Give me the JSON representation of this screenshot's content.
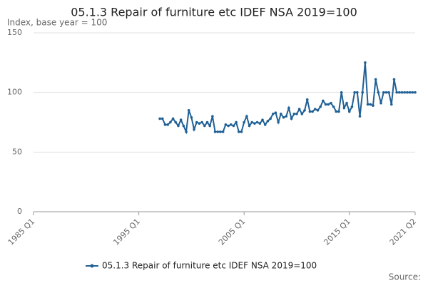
{
  "chart_data": {
    "type": "line",
    "title": "05.1.3 Repair of furniture etc IDEF NSA 2019=100",
    "subtitle": "Index, base year = 100",
    "source": "Source:",
    "categories": [
      "1985 Q1",
      null,
      null,
      null,
      null,
      null,
      null,
      null,
      null,
      null,
      null,
      null,
      null,
      null,
      null,
      null,
      null,
      null,
      null,
      null,
      null,
      null,
      null,
      null,
      null,
      null,
      null,
      null,
      null,
      null,
      null,
      null,
      null,
      null,
      null,
      null,
      null,
      null,
      null,
      null,
      "1995 Q1",
      null,
      null,
      null,
      null,
      null,
      null,
      null,
      null,
      null,
      null,
      null,
      null,
      null,
      null,
      null,
      null,
      null,
      null,
      null,
      null,
      null,
      null,
      null,
      null,
      null,
      null,
      null,
      null,
      null,
      null,
      null,
      null,
      null,
      null,
      null,
      null,
      null,
      null,
      null,
      "2005 Q1",
      null,
      null,
      null,
      null,
      null,
      null,
      null,
      null,
      null,
      null,
      null,
      null,
      null,
      null,
      null,
      null,
      null,
      null,
      null,
      null,
      null,
      null,
      null,
      null,
      null,
      null,
      null,
      null,
      null,
      null,
      null,
      null,
      null,
      null,
      null,
      null,
      null,
      null,
      null,
      "2015 Q1",
      null,
      null,
      null,
      null,
      null,
      null,
      null,
      null,
      null,
      null,
      null,
      null,
      null,
      null,
      null,
      null,
      null,
      null,
      null,
      null,
      null,
      null,
      null,
      null,
      "2021 Q2"
    ],
    "series": [
      {
        "name": "05.1.3 Repair of furniture etc IDEF NSA 2019=100",
        "color": "#206095",
        "values": [
          null,
          null,
          null,
          null,
          null,
          null,
          null,
          null,
          null,
          null,
          null,
          null,
          null,
          null,
          null,
          null,
          null,
          null,
          null,
          null,
          null,
          null,
          null,
          null,
          null,
          null,
          null,
          null,
          null,
          null,
          null,
          null,
          null,
          null,
          null,
          null,
          null,
          null,
          null,
          null,
          null,
          null,
          null,
          null,
          null,
          null,
          null,
          null,
          78,
          78,
          73,
          73,
          75,
          78,
          75,
          72,
          77,
          72,
          67,
          85,
          79,
          69,
          75,
          74,
          75,
          72,
          75,
          72,
          80,
          67,
          67,
          67,
          67,
          73,
          72,
          73,
          72,
          75,
          67,
          67,
          75,
          80,
          72,
          75,
          74,
          75,
          74,
          77,
          73,
          76,
          78,
          82,
          83,
          75,
          82,
          79,
          80,
          87,
          78,
          82,
          82,
          86,
          82,
          85,
          94,
          84,
          84,
          86,
          85,
          88,
          93,
          90,
          90,
          91,
          88,
          84,
          84,
          100,
          87,
          91,
          84,
          88,
          100,
          100,
          80,
          100,
          125,
          90,
          90,
          89,
          111,
          100,
          91,
          100,
          100,
          100,
          90,
          111,
          100,
          100,
          100,
          100,
          100,
          100,
          100,
          100
        ]
      }
    ],
    "ylim": [
      0,
      150
    ],
    "yticks": [
      0,
      50,
      100,
      150
    ],
    "grid": true
  }
}
